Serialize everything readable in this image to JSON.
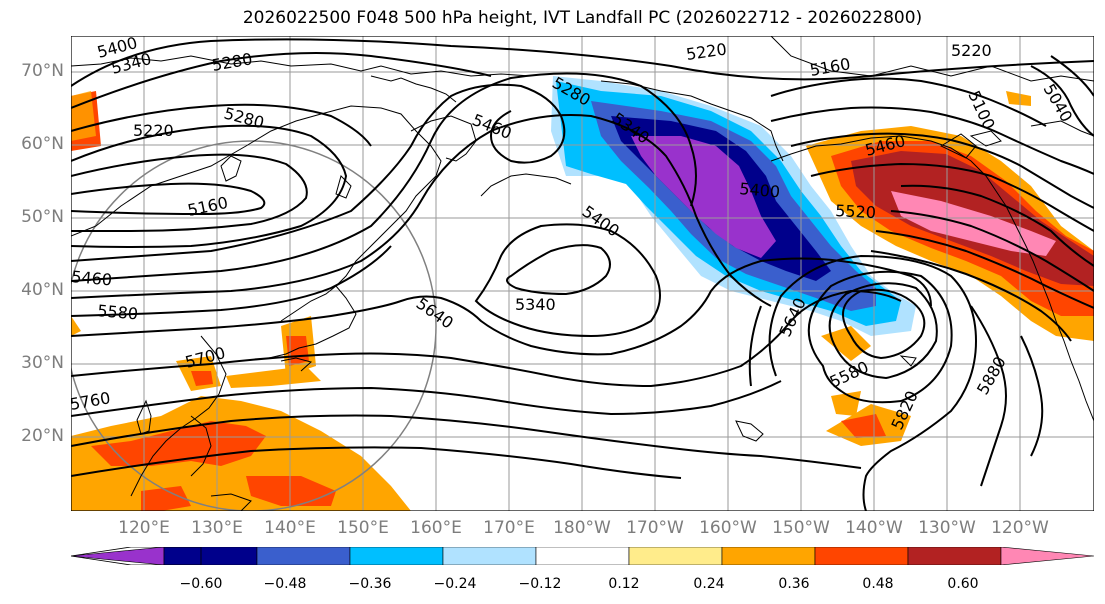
{
  "title": "2026022500 F048 500 hPa height, IVT Landfall PC (2026022712 - 2026022800)",
  "latitude_labels": [
    "70°N",
    "60°N",
    "50°N",
    "40°N",
    "30°N",
    "20°N"
  ],
  "longitude_labels": [
    "120°E",
    "130°E",
    "140°E",
    "150°E",
    "160°E",
    "170°E",
    "180°W",
    "170°W",
    "160°W",
    "150°W",
    "140°W",
    "130°W",
    "120°W"
  ],
  "contour_labels": [
    "5400",
    "5340",
    "5280",
    "5220",
    "5280",
    "5220",
    "5160",
    "5220",
    "5160",
    "5100",
    "5040",
    "5460",
    "5400",
    "5400",
    "5460",
    "5520",
    "5340",
    "5580",
    "5640",
    "5640",
    "5580",
    "5700",
    "5760",
    "5820",
    "5880",
    "5460",
    "5280",
    "5340"
  ],
  "colorbar": {
    "ticks": [
      "−0.60",
      "−0.48",
      "−0.36",
      "−0.24",
      "−0.12",
      "0.12",
      "0.24",
      "0.36",
      "0.48",
      "0.60"
    ],
    "colors": [
      "#9932CC",
      "#00008B",
      "#3A5FCD",
      "#00BFFF",
      "#B0E2FF",
      "#FFFFFF",
      "#FFEC8B",
      "#FFA500",
      "#FF4500",
      "#B22222",
      "#FF87B4"
    ]
  }
}
